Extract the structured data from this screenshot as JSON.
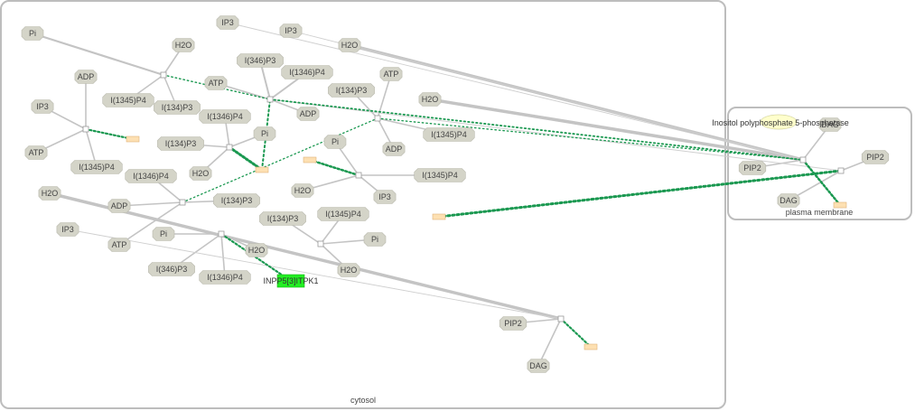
{
  "compartments": {
    "cytosol": "cytosol",
    "plasma_membrane": "plasma membrane"
  },
  "enzymes": {
    "inpp5_itpk1": "INPP5[3]ITPK1",
    "inositol_phosphatase": "Inositol polyphosphate 5-phosphatase"
  },
  "species": {
    "pi_a": "Pi",
    "h2o_a": "H2O",
    "ip3_a": "IP3",
    "ip3_b": "IP3",
    "h2o_b": "H2O",
    "i346p3_a": "I(346)P3",
    "i1346p4_a": "I(1346)P4",
    "adp_a": "ADP",
    "atp_a": "ATP",
    "i1345p4_a": "I(1345)P4",
    "i134p3_a": "I(134)P3",
    "atp_b": "ATP",
    "adp_b": "ADP",
    "ip3_c": "IP3",
    "i134p3_b": "I(134)P3",
    "h2o_c": "H2O",
    "atp_c": "ATP",
    "i1346p4_b": "I(1346)P4",
    "pi_b": "Pi",
    "i134p3_c": "I(134)P3",
    "i1345p4_b": "I(1345)P4",
    "i1345p4_c": "I(1345)P4",
    "adp_c": "ADP",
    "i1345p4_d": "I(1345)P4",
    "pi_c": "Pi",
    "h2o_d": "H2O",
    "i1346p4_c": "I(1346)P4",
    "h2o_e": "H2O",
    "i1345p4_e": "I(1345)P4",
    "h2o_f": "H2O",
    "ip3_d": "IP3",
    "adp_d": "ADP",
    "i134p3_d": "I(134)P3",
    "i134p3_e": "I(134)P3",
    "i1345p4_f": "I(1345)P4",
    "ip3_e": "IP3",
    "pi_d": "Pi",
    "pi_e": "Pi",
    "atp_d": "ATP",
    "h2o_g": "H2O",
    "i346p3_b": "I(346)P3",
    "i1346p4_d": "I(1346)P4",
    "h2o_h": "H2O",
    "pip2_a": "PIP2",
    "dag_a": "DAG",
    "dag_b": "DAG",
    "pip2_b": "PIP2",
    "pip2_c": "PIP2",
    "dag_c": "DAG"
  },
  "colors": {
    "species_fill": "#d4d4c8",
    "catalysis_link": "#1a9850",
    "enzyme_green": "#22ee22",
    "enzyme_yellow": "#ffffcc",
    "sink_fill": "#fde0b2",
    "compartment_border": "#bdbdbd"
  }
}
